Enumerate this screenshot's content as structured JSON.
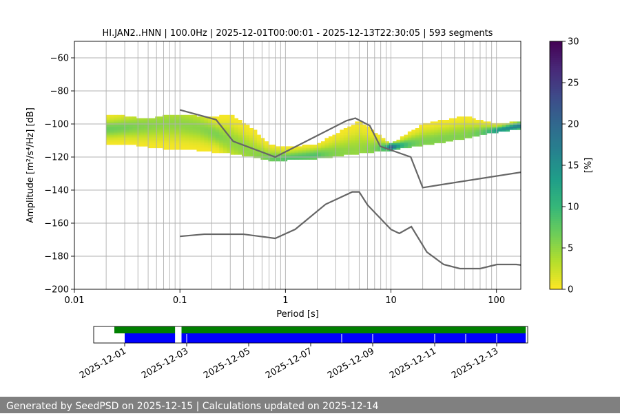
{
  "chart_data": [
    {
      "type": "heatmap",
      "title": "HI.JAN2..HNN | 100.0Hz | 2025-12-01T00:00:01 - 2025-12-13T22:30:05 | 593 segments",
      "xlabel": "Period [s]",
      "ylabel": "Amplitude [m²/s⁴/Hz] [dB]",
      "x_scale": "log",
      "xlim": [
        0.01,
        170
      ],
      "ylim": [
        -200,
        -50
      ],
      "x_ticks": [
        "0.01",
        "0.1",
        "1",
        "10",
        "100"
      ],
      "y_ticks": [
        "−60",
        "−80",
        "−100",
        "−120",
        "−140",
        "−160",
        "−180",
        "−200"
      ],
      "grid": true,
      "colorbar": {
        "label": "[%]",
        "range": [
          0,
          30
        ],
        "ticks": [
          "0",
          "5",
          "10",
          "15",
          "20",
          "25",
          "30"
        ],
        "colormap": "viridis_r"
      },
      "mode_curve": {
        "x": [
          0.02,
          0.03,
          0.05,
          0.07,
          0.1,
          0.15,
          0.2,
          0.3,
          0.5,
          0.7,
          1,
          2,
          5,
          10,
          20,
          50,
          100,
          170
        ],
        "y": [
          -103,
          -102,
          -101,
          -100,
          -100,
          -102,
          -105,
          -110,
          -118,
          -121,
          -121,
          -119,
          -116,
          -114,
          -111,
          -107,
          -104,
          -101
        ]
      },
      "spread": {
        "x": [
          0.02,
          0.03,
          0.05,
          0.07,
          0.1,
          0.15,
          0.2,
          0.3,
          0.5,
          0.7,
          1,
          2,
          5,
          10,
          20,
          50,
          100,
          170
        ],
        "low": [
          -112,
          -112,
          -114,
          -115,
          -115,
          -116,
          -117,
          -118,
          -120,
          -122,
          -122,
          -121,
          -118,
          -116,
          -113,
          -109,
          -105,
          -103
        ],
        "high": [
          -95,
          -95,
          -97,
          -95,
          -95,
          -95,
          -96,
          -94,
          -103,
          -112,
          -114,
          -112,
          -98,
          -112,
          -100,
          -95,
          -100,
          -98
        ]
      },
      "noise_models": [
        {
          "name": "high",
          "x": [
            0.1,
            0.22,
            0.32,
            0.8,
            3.8,
            4.6,
            6.3,
            7.9,
            15.4,
            20,
            354.8
          ],
          "y": [
            -91.5,
            -97.4,
            -110.5,
            -120,
            -98,
            -96.5,
            -101,
            -113.5,
            -120,
            -138.5,
            -126
          ]
        },
        {
          "name": "low",
          "x": [
            0.1,
            0.17,
            0.4,
            0.8,
            1.24,
            2.4,
            4.3,
            5,
            6,
            10,
            12,
            15.6,
            21.9,
            31.6,
            45,
            70,
            101,
            154,
            328
          ],
          "y": [
            -168,
            -166.7,
            -166.7,
            -169.2,
            -163.7,
            -148.6,
            -141.1,
            -141.1,
            -149,
            -163.8,
            -166.2,
            -162.1,
            -177.5,
            -185,
            -187.5,
            -187.5,
            -185,
            -185,
            -187.5
          ]
        }
      ]
    },
    {
      "type": "timeline",
      "xlabel": "",
      "x_ticks": [
        "2025-12-01",
        "2025-12-03",
        "2025-12-05",
        "2025-12-07",
        "2025-12-09",
        "2025-12-11",
        "2025-12-13"
      ],
      "xlim": [
        "2025-11-30",
        "2025-12-14"
      ],
      "series": [
        {
          "color": "#008000",
          "row": "top",
          "segments": [
            [
              "2025-11-30T16:00",
              "2025-12-02T15:00"
            ],
            [
              "2025-12-02T20:00",
              "2025-12-13T22:30"
            ]
          ]
        },
        {
          "color": "#0000ff",
          "row": "bottom",
          "segments": [
            [
              "2025-12-01T00:00",
              "2025-12-02T15:00"
            ],
            [
              "2025-12-02T20:00",
              "2025-12-13T22:30"
            ]
          ]
        }
      ]
    }
  ],
  "footer": "Generated by SeedPSD on 2025-12-15 | Calculations updated on 2025-12-14"
}
